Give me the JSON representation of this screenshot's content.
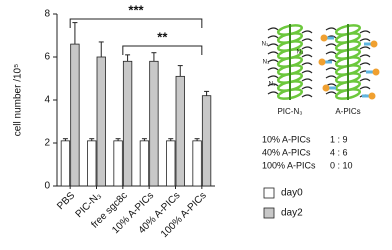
{
  "chart_data": {
    "type": "bar",
    "y_label": "cell number /10⁵",
    "categories": [
      "PBS",
      "PIC-N₃",
      "free sgc8c",
      "10% A-PICs",
      "40% A-PICs",
      "100% A-PICs"
    ],
    "series": [
      {
        "name": "day0",
        "color": "#ffffff",
        "values": [
          2.1,
          2.1,
          2.1,
          2.1,
          2.1,
          2.1
        ],
        "errors": [
          0.1,
          0.1,
          0.1,
          0.1,
          0.1,
          0.1
        ]
      },
      {
        "name": "day2",
        "color": "#c8c8c8",
        "values": [
          6.6,
          6.0,
          5.8,
          5.8,
          5.1,
          4.2
        ],
        "errors": [
          1.0,
          0.7,
          0.3,
          0.4,
          0.5,
          0.2
        ]
      }
    ],
    "ylim": [
      0,
      8
    ],
    "yticks": [
      0,
      2,
      4,
      6,
      8
    ],
    "significance": [
      {
        "between": [
          "PBS",
          "100% A-PICs"
        ],
        "label": "***"
      },
      {
        "between": [
          "free sgc8c",
          "100% A-PICs"
        ],
        "label": "**"
      }
    ]
  },
  "diagram": {
    "n3": "N₃",
    "left_name": "PIC-N₃",
    "right_name": "A-PICs",
    "ratios": [
      [
        "10% A-PICs",
        "1 : 9"
      ],
      [
        "40% A-PICs",
        "4 : 6"
      ],
      [
        "100% A-PICs",
        "0 : 10"
      ]
    ]
  }
}
